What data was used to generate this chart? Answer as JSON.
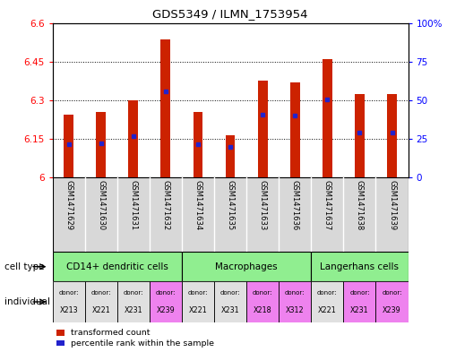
{
  "title": "GDS5349 / ILMN_1753954",
  "samples": [
    "GSM1471629",
    "GSM1471630",
    "GSM1471631",
    "GSM1471632",
    "GSM1471634",
    "GSM1471635",
    "GSM1471633",
    "GSM1471636",
    "GSM1471637",
    "GSM1471638",
    "GSM1471639"
  ],
  "red_values": [
    6.245,
    6.255,
    6.3,
    6.535,
    6.255,
    6.165,
    6.375,
    6.37,
    6.46,
    6.325,
    6.325
  ],
  "blue_values": [
    6.13,
    6.135,
    6.16,
    6.335,
    6.13,
    6.12,
    6.245,
    6.24,
    6.305,
    6.175,
    6.175
  ],
  "y_min": 6.0,
  "y_max": 6.6,
  "y_ticks": [
    6.0,
    6.15,
    6.3,
    6.45,
    6.6
  ],
  "y_tick_labels": [
    "6",
    "6.15",
    "6.3",
    "6.45",
    "6.6"
  ],
  "right_y_ticks": [
    0,
    25,
    50,
    75,
    100
  ],
  "right_y_tick_labels": [
    "0",
    "25",
    "50",
    "75",
    "100%"
  ],
  "cell_type_groups": [
    {
      "label": "CD14+ dendritic cells",
      "start": 0,
      "end": 4,
      "color": "#90EE90"
    },
    {
      "label": "Macrophages",
      "start": 4,
      "end": 8,
      "color": "#90EE90"
    },
    {
      "label": "Langerhans cells",
      "start": 8,
      "end": 11,
      "color": "#90EE90"
    }
  ],
  "donors": [
    "X213",
    "X221",
    "X231",
    "X239",
    "X221",
    "X231",
    "X218",
    "X312",
    "X221",
    "X231",
    "X239"
  ],
  "donor_colors": [
    "#E0E0E0",
    "#E0E0E0",
    "#E0E0E0",
    "#EE82EE",
    "#E0E0E0",
    "#E0E0E0",
    "#EE82EE",
    "#EE82EE",
    "#E0E0E0",
    "#EE82EE",
    "#EE82EE"
  ],
  "bar_color": "#CC2200",
  "blue_marker_color": "#2222CC",
  "background_color": "#FFFFFF"
}
